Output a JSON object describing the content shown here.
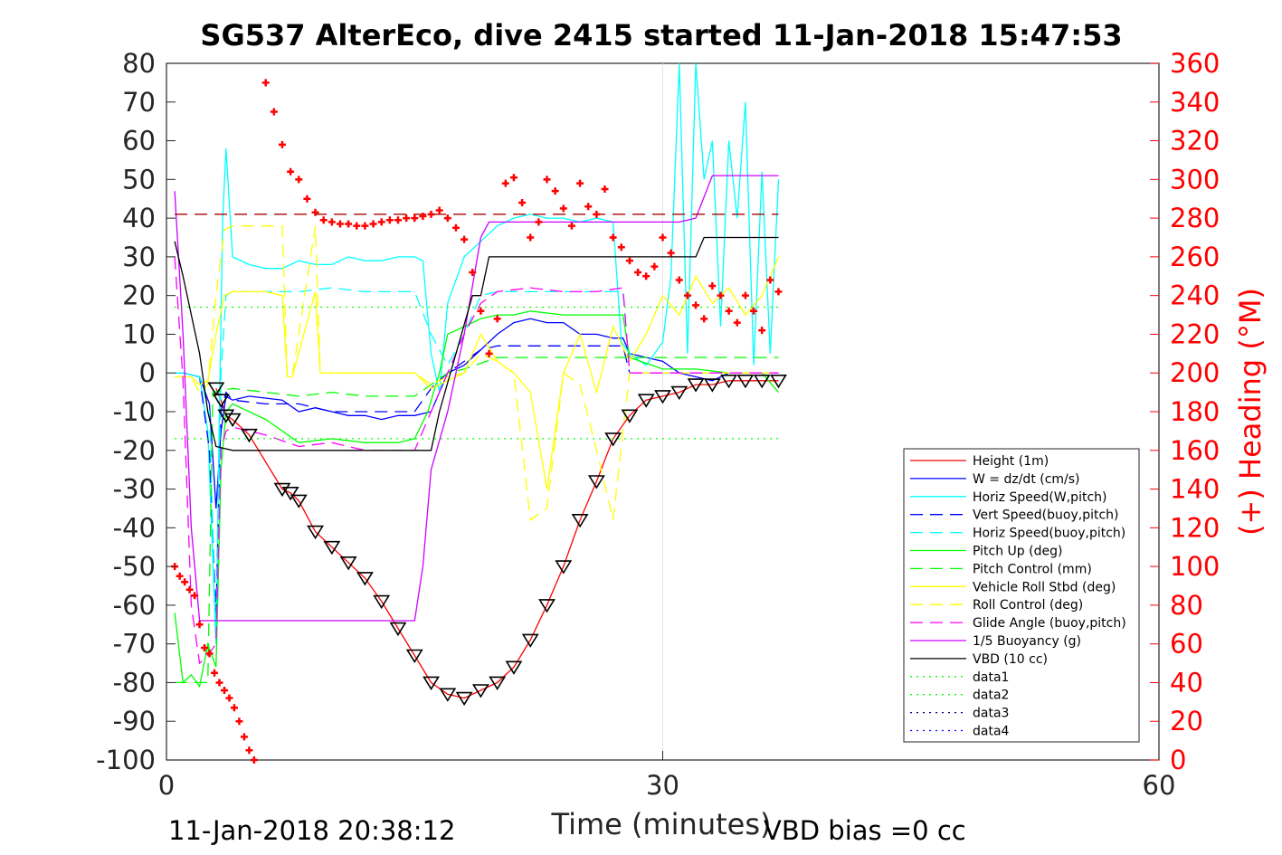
{
  "title": "SG537 AlterEco, dive 2415 started 11-Jan-2018 15:47:53",
  "footer": {
    "timestamp": "11-Jan-2018 20:38:12",
    "vbd_bias": "VBD bias =0 cc"
  },
  "chart_data": {
    "type": "line",
    "xlabel": "Time (minutes)",
    "ylabel_left": "",
    "ylabel_right": "(+) Heading (°M)",
    "xlim": [
      0,
      60
    ],
    "ylim_left": [
      -100,
      80
    ],
    "ylim_right": [
      0,
      360
    ],
    "x_ticks": [
      "0",
      "30",
      "60"
    ],
    "y_ticks_left": [
      "80",
      "70",
      "60",
      "50",
      "40",
      "30",
      "20",
      "10",
      "0",
      "-10",
      "-20",
      "-30",
      "-40",
      "-50",
      "-60",
      "-70",
      "-80",
      "-90",
      "-100"
    ],
    "y_ticks_right": [
      "360",
      "340",
      "320",
      "300",
      "280",
      "260",
      "240",
      "220",
      "200",
      "180",
      "160",
      "140",
      "120",
      "100",
      "80",
      "60",
      "40",
      "20",
      "0"
    ],
    "grid": "x-only",
    "legend_position": "bottom-right",
    "legend": [
      {
        "label": "Height (1m)",
        "color": "#ff0000",
        "style": "solid"
      },
      {
        "label": "W = dz/dt (cm/s)",
        "color": "#0000ff",
        "style": "solid"
      },
      {
        "label": "Horiz Speed(W,pitch)",
        "color": "#00ffff",
        "style": "solid"
      },
      {
        "label": "Vert Speed(buoy,pitch)",
        "color": "#0000ff",
        "style": "dashed"
      },
      {
        "label": "Horiz Speed(buoy,pitch)",
        "color": "#00ffff",
        "style": "dashed"
      },
      {
        "label": "Pitch Up (deg)",
        "color": "#00ff00",
        "style": "solid"
      },
      {
        "label": "Pitch Control (mm)",
        "color": "#00ff00",
        "style": "dashed"
      },
      {
        "label": "Vehicle Roll Stbd (deg)",
        "color": "#ffff00",
        "style": "solid"
      },
      {
        "label": "Roll Control (deg)",
        "color": "#ffff00",
        "style": "dashed"
      },
      {
        "label": "Glide Angle (buoy,pitch)",
        "color": "#ff00ff",
        "style": "dashed"
      },
      {
        "label": "1/5 Buoyancy (g)",
        "color": "#cc00ff",
        "style": "solid"
      },
      {
        "label": "VBD (10 cc)",
        "color": "#000000",
        "style": "solid"
      },
      {
        "label": "data1",
        "color": "#00ff00",
        "style": "dotted"
      },
      {
        "label": "data2",
        "color": "#00ff00",
        "style": "dotted"
      },
      {
        "label": "data3",
        "color": "#000080",
        "style": "dotted"
      },
      {
        "label": "data4",
        "color": "#0000ff",
        "style": "dotted"
      }
    ],
    "series": [
      {
        "name": "Height (1m)",
        "axis": "left",
        "marker": "triangle",
        "x": [
          3.0,
          3.3,
          3.6,
          4.0,
          5.0,
          7.0,
          7.5,
          8.0,
          9.0,
          10.0,
          11.0,
          12.0,
          13.0,
          14.0,
          15.0,
          16.0,
          17.0,
          18.0,
          19.0,
          20.0,
          21.0,
          22.0,
          23.0,
          24.0,
          25.0,
          26.0,
          27.0,
          28.0,
          29.0,
          30.0,
          31.0,
          32.0,
          33.0,
          34.0,
          35.0,
          36.0,
          37.0
        ],
        "y": [
          -4,
          -7,
          -11,
          -12,
          -16,
          -30,
          -31,
          -33,
          -41,
          -45,
          -49,
          -53,
          -59,
          -66,
          -73,
          -80,
          -83,
          -84,
          -82,
          -80,
          -76,
          -69,
          -60,
          -50,
          -38,
          -28,
          -17,
          -11,
          -7,
          -6,
          -5,
          -3,
          -3,
          -2,
          -2,
          -2,
          -2
        ]
      },
      {
        "name": "W = dz/dt (cm/s)",
        "axis": "left",
        "x": [
          0.5,
          1.0,
          2.0,
          2.6,
          3.0,
          3.3,
          3.6,
          4.0,
          5.0,
          7.0,
          8.0,
          9.0,
          10.0,
          11.0,
          12.0,
          13.0,
          14.0,
          15.0,
          16.0,
          16.5,
          17.0,
          18.0,
          19.0,
          20.0,
          21.0,
          22.0,
          23.0,
          24.0,
          25.0,
          26.0,
          27.0,
          27.6,
          28.0,
          29.0,
          30.0,
          31.0,
          32.0,
          33.0,
          34.0,
          35.0,
          36.0,
          37.0
        ],
        "y": [
          0,
          0,
          -1,
          -8,
          -35,
          -15,
          -6,
          -7,
          -6,
          -7,
          -10,
          -9,
          -10,
          -11,
          -11,
          -12,
          -11,
          -11,
          -10,
          -5,
          0,
          2,
          6,
          10,
          13,
          14,
          13,
          13,
          10,
          10,
          9,
          9,
          5,
          4,
          3,
          0,
          -1,
          -2,
          0,
          0,
          0,
          0
        ]
      },
      {
        "name": "Horiz Speed(W,pitch)",
        "axis": "left",
        "x": [
          0.5,
          1.0,
          2.0,
          2.5,
          3.0,
          3.2,
          3.4,
          3.6,
          4.0,
          5.0,
          6.0,
          7.0,
          8.0,
          9.0,
          10.0,
          11.0,
          12.0,
          13.0,
          14.0,
          15.0,
          15.5,
          16.0,
          16.5,
          17.0,
          18.0,
          19.0,
          20.0,
          21.0,
          22.0,
          23.0,
          24.0,
          25.0,
          26.0,
          27.0,
          27.5,
          28.0,
          29.0,
          30.0,
          30.5,
          31.0,
          31.5,
          32.0,
          32.5,
          33.0,
          33.5,
          34.0,
          34.5,
          35.0,
          35.5,
          36.0,
          36.5,
          37.0
        ],
        "y": [
          0,
          0,
          -1,
          -15,
          -70,
          -10,
          40,
          58,
          30,
          28,
          27,
          27,
          29,
          28,
          28,
          30,
          29,
          29,
          30,
          30,
          29,
          5,
          -5,
          18,
          30,
          34,
          38,
          40,
          41,
          40,
          40,
          39,
          40,
          39,
          8,
          5,
          2,
          8,
          25,
          80,
          5,
          80,
          50,
          60,
          12,
          60,
          40,
          70,
          2,
          52,
          5,
          50
        ]
      },
      {
        "name": "Vert Speed(buoy,pitch)",
        "axis": "left",
        "style": "dashed",
        "x": [
          0.5,
          1.0,
          2.0,
          2.6,
          3.0,
          3.3,
          3.6,
          4.0,
          6.0,
          8.0,
          10.0,
          12.0,
          14.0,
          15.0,
          16.0,
          17.0,
          18.0,
          19.0,
          20.0,
          22.0,
          24.0,
          26.0,
          27.6,
          28.0,
          30.0,
          32.0,
          34.0,
          36.0,
          37.0
        ],
        "y": [
          0,
          0,
          -1,
          -20,
          -62,
          -10,
          -5,
          -7,
          -8,
          -8,
          -10,
          -10,
          -10,
          -10,
          -4,
          0,
          3,
          6,
          7,
          7,
          7,
          7,
          7,
          0,
          0,
          0,
          0,
          0,
          0
        ]
      },
      {
        "name": "Horiz Speed(buoy,pitch)",
        "axis": "left",
        "style": "dashed",
        "x": [
          0.5,
          1.0,
          2.0,
          2.6,
          3.0,
          3.3,
          3.6,
          4.0,
          6.0,
          8.0,
          10.0,
          12.0,
          14.0,
          15.0,
          16.0,
          17.0,
          18.0,
          19.0,
          20.0,
          22.0,
          24.0,
          26.0,
          27.6,
          28.0,
          30.0,
          32.0,
          34.0,
          36.0,
          37.0
        ],
        "y": [
          0,
          0,
          -1,
          -10,
          -70,
          0,
          20,
          21,
          21,
          21,
          22,
          21,
          21,
          21,
          10,
          2,
          10,
          20,
          21,
          21,
          21,
          21,
          21,
          0,
          0,
          0,
          0,
          0,
          0
        ]
      },
      {
        "name": "Pitch Up (deg)",
        "axis": "left",
        "x": [
          0.5,
          1.0,
          1.5,
          2.0,
          2.5,
          3.0,
          3.3,
          3.6,
          4.0,
          6.0,
          8.0,
          10.0,
          12.0,
          14.0,
          15.0,
          15.8,
          16.5,
          17.0,
          18.0,
          19.0,
          20.0,
          21.0,
          22.0,
          24.0,
          26.0,
          27.6,
          28.0,
          30.0,
          32.0,
          34.0,
          36.0,
          37.0
        ],
        "y": [
          -62,
          -80,
          -78,
          -81,
          -70,
          -76,
          -25,
          -10,
          -8,
          -12,
          -18,
          -17,
          -18,
          -18,
          -17,
          -10,
          0,
          10,
          12,
          14,
          15,
          15,
          16,
          15,
          15,
          15,
          4,
          1,
          1,
          0,
          0,
          -5
        ]
      },
      {
        "name": "Pitch Control (mm)",
        "axis": "left",
        "style": "dashed",
        "x": [
          0.5,
          2.5,
          2.8,
          4.0,
          6.0,
          8.0,
          10.0,
          12.0,
          14.0,
          15.0,
          16.0,
          17.0,
          18.0,
          20.0,
          22.0,
          24.0,
          26.0,
          28.0,
          30.0,
          32.0,
          34.0,
          36.0,
          37.0
        ],
        "y": [
          -80,
          -80,
          -5,
          -4,
          -5,
          -6,
          -5,
          -6,
          -6,
          -6,
          -3,
          0,
          1,
          4,
          4,
          4,
          4,
          4,
          4,
          4,
          4,
          4,
          4
        ]
      },
      {
        "name": "Vehicle Roll Stbd (deg)",
        "axis": "left",
        "x": [
          0.5,
          1.5,
          2.0,
          2.5,
          3.0,
          3.5,
          4.0,
          6.0,
          7.0,
          7.3,
          7.6,
          9.0,
          9.3,
          10.0,
          12.0,
          14.0,
          15.0,
          16.0,
          17.0,
          18.0,
          19.0,
          20.0,
          21.0,
          22.0,
          23.0,
          24.0,
          25.0,
          26.0,
          27.0,
          28.0,
          29.0,
          30.0,
          31.0,
          32.0,
          33.0,
          34.0,
          35.0,
          36.0,
          37.0
        ],
        "y": [
          -1,
          -1,
          -3,
          -2,
          10,
          20,
          21,
          21,
          20,
          -1,
          -1,
          21,
          0,
          0,
          0,
          0,
          0,
          -4,
          -2,
          0,
          10,
          3,
          0,
          -5,
          -30,
          0,
          10,
          -5,
          12,
          3,
          10,
          20,
          15,
          25,
          18,
          22,
          15,
          20,
          30
        ]
      },
      {
        "name": "Roll Control (deg)",
        "axis": "left",
        "style": "dashed",
        "x": [
          0.5,
          1.5,
          2.0,
          2.5,
          3.0,
          3.5,
          4.0,
          7.0,
          7.3,
          7.6,
          9.0,
          9.3,
          10.0,
          14.0,
          15.0,
          16.0,
          17.0,
          18.0,
          19.0,
          20.0,
          21.0,
          22.0,
          23.0,
          24.0,
          25.0,
          26.0,
          27.0,
          28.0,
          30.0,
          32.0,
          34.0,
          36.0,
          37.0
        ],
        "y": [
          -1,
          -1,
          -5,
          -3,
          20,
          37,
          38,
          38,
          -1,
          -1,
          38,
          0,
          0,
          0,
          0,
          -3,
          -1,
          0,
          5,
          3,
          0,
          -38,
          -35,
          0,
          -3,
          -20,
          -38,
          0,
          0,
          0,
          0,
          0,
          0
        ]
      },
      {
        "name": "Glide Angle (buoy,pitch)",
        "axis": "left",
        "style": "dashed",
        "x": [
          0.5,
          1.0,
          1.5,
          2.0,
          2.5,
          3.0,
          3.3,
          3.6,
          4.0,
          6.0,
          8.0,
          10.0,
          12.0,
          14.0,
          15.0,
          16.0,
          17.0,
          18.0,
          19.0,
          20.0,
          22.0,
          24.0,
          26.0,
          27.6,
          28.0,
          30.0,
          32.0,
          34.0,
          36.0,
          37.0
        ],
        "y": [
          30,
          -2,
          -60,
          -75,
          -73,
          -70,
          -20,
          -15,
          -14,
          -16,
          -19,
          -18,
          -20,
          -20,
          -20,
          -10,
          0,
          10,
          18,
          21,
          22,
          21,
          21,
          22,
          0,
          0,
          0,
          0,
          0,
          0
        ]
      },
      {
        "name": "1/5 Buoyancy (g)",
        "axis": "left",
        "x": [
          0.5,
          1.0,
          1.5,
          2.0,
          2.5,
          3.0,
          4.0,
          10.0,
          15.0,
          15.5,
          16.0,
          17.0,
          18.0,
          19.0,
          19.5,
          20.0,
          25.0,
          27.6,
          28.0,
          30.0,
          31.0,
          32.0,
          33.0,
          34.0,
          35.0,
          36.0,
          37.0
        ],
        "y": [
          47,
          10,
          -40,
          -64,
          -64,
          -64,
          -64,
          -64,
          -64,
          -50,
          -25,
          -10,
          10,
          35,
          39,
          39,
          39,
          39,
          39,
          39,
          39,
          40,
          51,
          51,
          51,
          51,
          51
        ]
      },
      {
        "name": "VBD (10 cc)",
        "axis": "left",
        "x": [
          0.5,
          1.0,
          2.0,
          2.5,
          3.0,
          4.0,
          10.0,
          15.0,
          16.0,
          16.5,
          17.5,
          18.5,
          19.0,
          19.5,
          20.0,
          25.0,
          27.6,
          28.0,
          30.0,
          31.0,
          32.0,
          32.5,
          33.0,
          34.0,
          37.0
        ],
        "y": [
          34,
          25,
          5,
          -10,
          -19,
          -20,
          -20,
          -20,
          -20,
          -10,
          5,
          20,
          20,
          30,
          30,
          30,
          30,
          30,
          30,
          30,
          30,
          35,
          35,
          35,
          35
        ]
      },
      {
        "name": "data1",
        "axis": "left",
        "style": "dotted",
        "x": [
          0.5,
          37.0
        ],
        "y": [
          17,
          17
        ]
      },
      {
        "name": "data2",
        "axis": "left",
        "style": "dotted",
        "x": [
          0.5,
          37.0
        ],
        "y": [
          -17,
          -17
        ]
      },
      {
        "name": "data3",
        "axis": "left",
        "style": "dashed-red",
        "x": [
          0.5,
          37.0
        ],
        "y": [
          41,
          41
        ]
      },
      {
        "name": "(+) Heading (°M)",
        "axis": "right",
        "marker": "plus",
        "x": [
          0.5,
          0.8,
          1.1,
          1.4,
          1.7,
          2.0,
          2.3,
          2.6,
          2.9,
          3.2,
          3.5,
          3.8,
          4.1,
          4.4,
          4.7,
          5.0,
          5.3,
          5.5,
          6.0,
          6.5,
          7.0,
          7.5,
          8.0,
          8.5,
          9.0,
          9.5,
          10.0,
          10.5,
          11.0,
          11.5,
          12.0,
          12.5,
          13.0,
          13.5,
          14.0,
          14.5,
          15.0,
          15.5,
          16.0,
          16.5,
          17.0,
          17.5,
          18.0,
          18.5,
          19.0,
          19.5,
          20.0,
          20.5,
          21.0,
          21.5,
          22.0,
          22.5,
          23.0,
          23.5,
          24.0,
          24.5,
          25.0,
          25.5,
          26.0,
          26.5,
          27.0,
          27.5,
          28.0,
          28.5,
          29.0,
          29.5,
          30.0,
          30.5,
          31.0,
          31.5,
          32.0,
          32.5,
          33.0,
          33.5,
          34.0,
          34.5,
          35.0,
          35.5,
          36.0,
          36.5,
          37.0
        ],
        "y": [
          100,
          95,
          92,
          88,
          85,
          70,
          58,
          55,
          45,
          40,
          36,
          32,
          27,
          20,
          12,
          5,
          0,
          -1,
          350,
          335,
          318,
          304,
          300,
          290,
          283,
          279,
          278,
          277,
          277,
          276,
          276,
          277,
          278,
          279,
          279,
          280,
          280,
          281,
          282,
          284,
          280,
          275,
          269,
          252,
          232,
          210,
          228,
          298,
          301,
          288,
          270,
          278,
          300,
          294,
          285,
          276,
          298,
          286,
          282,
          295,
          270,
          265,
          258,
          252,
          250,
          255,
          270,
          262,
          248,
          240,
          235,
          228,
          245,
          240,
          232,
          226,
          240,
          232,
          222,
          248,
          242
        ]
      }
    ]
  }
}
